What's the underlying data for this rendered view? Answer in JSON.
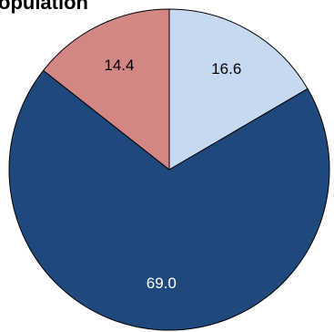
{
  "chart_data": {
    "type": "pie",
    "title": "opulation",
    "categories": [
      "",
      "",
      ""
    ],
    "values": [
      16.6,
      69.0,
      14.4
    ],
    "value_labels": [
      "16.6",
      "69.0",
      "14.4"
    ],
    "colors": [
      "#c6d9f0",
      "#1f497d",
      "#d38784"
    ],
    "label_colors": [
      "#000000",
      "#ffffff",
      "#000000"
    ],
    "start_angle_deg": 0,
    "direction": "clockwise",
    "legend": "none"
  }
}
